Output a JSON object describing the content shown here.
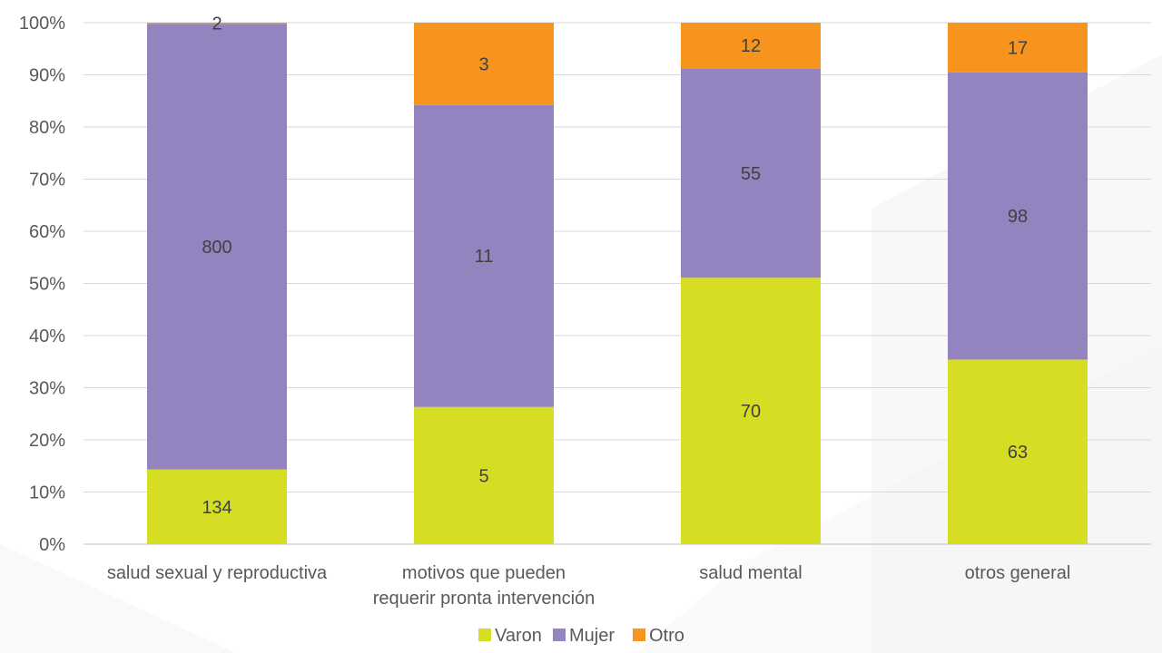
{
  "chart_data": {
    "type": "bar",
    "stacking": "percent",
    "categories": [
      [
        "salud sexual y reproductiva"
      ],
      [
        "motivos que pueden",
        "requerir pronta intervención"
      ],
      [
        "salud mental"
      ],
      [
        "otros general"
      ]
    ],
    "series": [
      {
        "name": "Varon",
        "values": [
          134,
          5,
          70,
          63
        ],
        "color": "#d6de23"
      },
      {
        "name": "Mujer",
        "values": [
          800,
          11,
          55,
          98
        ],
        "color": "#9384bf"
      },
      {
        "name": "Otro",
        "values": [
          2,
          3,
          12,
          17
        ],
        "color": "#f7941d"
      }
    ],
    "y_ticks": [
      "0%",
      "10%",
      "20%",
      "30%",
      "40%",
      "50%",
      "60%",
      "70%",
      "80%",
      "90%",
      "100%"
    ],
    "ylim": [
      0,
      100
    ],
    "grid": true,
    "legend_position": "bottom",
    "title": "",
    "xlabel": "",
    "ylabel": ""
  }
}
